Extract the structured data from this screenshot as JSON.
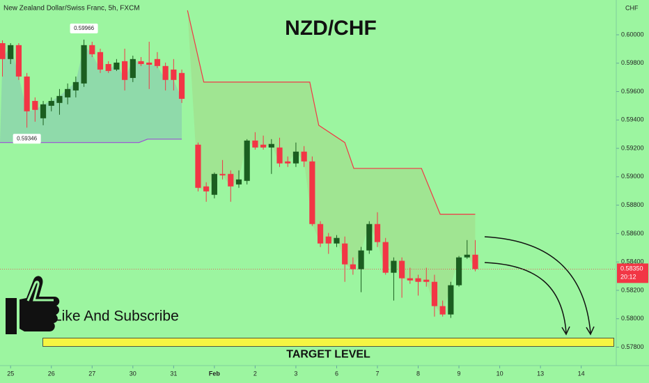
{
  "chart_data": {
    "type": "candlestick",
    "header": "New Zealand Dollar/Swiss Franc, 5h, FXCM",
    "title": "NZD/CHF",
    "y_axis_label": "CHF",
    "annotation": "Like And Subscribe",
    "target_label": "TARGET LEVEL",
    "up_color": "#1b5e20",
    "down_color": "#f23645",
    "x": [
      0,
      1,
      2,
      3,
      4,
      5,
      6,
      7,
      8,
      9,
      10,
      11,
      12,
      13,
      14,
      15,
      16,
      17,
      18,
      19,
      20,
      21,
      22,
      24,
      25,
      26,
      27,
      28,
      29,
      30,
      31,
      32,
      33,
      34,
      35,
      36,
      37,
      38,
      39,
      40,
      41,
      42,
      43,
      44,
      45,
      46,
      47,
      48,
      49,
      50,
      51,
      52,
      53,
      54,
      55,
      56,
      57,
      58
    ],
    "open": [
      0.59941,
      0.59829,
      0.59927,
      0.59706,
      0.59534,
      0.59412,
      0.595,
      0.5952,
      0.59559,
      0.59608,
      0.59657,
      0.59927,
      0.59878,
      0.59794,
      0.59755,
      0.59814,
      0.59696,
      0.59814,
      0.59804,
      0.59829,
      0.5978,
      0.59755,
      0.59731,
      0.59226,
      0.58932,
      0.58873,
      0.5902,
      0.5902,
      0.58946,
      0.58971,
      0.59255,
      0.59226,
      0.59206,
      0.59206,
      0.59108,
      0.59094,
      0.59177,
      0.59108,
      0.58667,
      0.58579,
      0.5853,
      0.5853,
      0.58383,
      0.58349,
      0.58481,
      0.58667,
      0.5854,
      0.58324,
      0.58408,
      0.58285,
      0.58285,
      0.58275,
      0.5826,
      0.58089,
      0.5803,
      0.58236,
      0.58432,
      0.58451
    ],
    "high": [
      0.59961,
      0.59941,
      0.59941,
      0.59731,
      0.59559,
      0.59534,
      0.59559,
      0.59618,
      0.59657,
      0.59706,
      0.59966,
      0.59951,
      0.59902,
      0.59814,
      0.59829,
      0.59902,
      0.59853,
      0.59843,
      0.59951,
      0.59878,
      0.59804,
      0.59829,
      0.59755,
      0.59241,
      0.58961,
      0.5903,
      0.59118,
      0.59045,
      0.59045,
      0.59265,
      0.59314,
      0.5929,
      0.59265,
      0.59275,
      0.59143,
      0.59241,
      0.59216,
      0.59143,
      0.58687,
      0.58604,
      0.58589,
      0.58579,
      0.58432,
      0.58506,
      0.58687,
      0.5875,
      0.58569,
      0.58432,
      0.58432,
      0.58359,
      0.5831,
      0.58359,
      0.5831,
      0.58128,
      0.5826,
      0.58442,
      0.58554,
      0.58554
    ],
    "low": [
      0.59706,
      0.59794,
      0.59682,
      0.59346,
      0.59388,
      0.59363,
      0.59461,
      0.59437,
      0.5951,
      0.59559,
      0.59633,
      0.59843,
      0.59731,
      0.59731,
      0.59745,
      0.59608,
      0.59667,
      0.5978,
      0.59618,
      0.59765,
      0.59608,
      0.59608,
      0.5952,
      0.58897,
      0.58824,
      0.58848,
      0.58981,
      0.58824,
      0.58922,
      0.58946,
      0.59191,
      0.59191,
      0.5902,
      0.59069,
      0.59069,
      0.59069,
      0.59069,
      0.58653,
      0.58505,
      0.58457,
      0.58505,
      0.5826,
      0.5831,
      0.58187,
      0.58457,
      0.58505,
      0.5831,
      0.58128,
      0.58148,
      0.58246,
      0.58163,
      0.58226,
      0.58015,
      0.58015,
      0.58006,
      0.58226,
      0.58422,
      0.58334
    ],
    "close": [
      0.59829,
      0.59927,
      0.59706,
      0.59461,
      0.59471,
      0.5951,
      0.59534,
      0.59569,
      0.59618,
      0.59667,
      0.59927,
      0.59863,
      0.59755,
      0.59745,
      0.59804,
      0.59682,
      0.59829,
      0.59794,
      0.59789,
      0.5978,
      0.59682,
      0.59682,
      0.59549,
      0.58922,
      0.58897,
      0.5902,
      0.5901,
      0.58932,
      0.58981,
      0.59255,
      0.59206,
      0.59206,
      0.59231,
      0.59094,
      0.59094,
      0.59177,
      0.59108,
      0.58667,
      0.5853,
      0.5853,
      0.58569,
      0.58383,
      0.58349,
      0.58481,
      0.58667,
      0.5854,
      0.58324,
      0.58408,
      0.58285,
      0.5827,
      0.5826,
      0.5826,
      0.58089,
      0.5803,
      0.58236,
      0.58432,
      0.58451,
      0.5835
    ],
    "high_label": "0.59966",
    "low_label": "0.59346",
    "last_price": {
      "value": 0.5835,
      "label": "0.58350"
    },
    "countdown": "20:12",
    "upper_line": {
      "color": "#f23645",
      "x": [
        22.7,
        24.7,
        37.7,
        38.8,
        42,
        43.1,
        51.4,
        53.7,
        58
      ],
      "values": [
        0.60172,
        0.59667,
        0.59667,
        0.59363,
        0.59241,
        0.59059,
        0.59059,
        0.58736,
        0.58736
      ]
    },
    "lower_line": {
      "color": "#9c4fd6",
      "x": [
        -0.3,
        16.75,
        17.8,
        22
      ],
      "values": [
        0.59241,
        0.59241,
        0.59265,
        0.59265
      ]
    },
    "target_zone": [
      0.57805,
      0.57864
    ],
    "target_x": [
      4.96,
      75
    ],
    "xlim": [
      -0.3,
      75.3
    ],
    "ylim": [
      0.5767,
      0.60245
    ],
    "xticks": [
      {
        "value": 1,
        "label": "25"
      },
      {
        "value": 6,
        "label": "26"
      },
      {
        "value": 11,
        "label": "27"
      },
      {
        "value": 16,
        "label": "30"
      },
      {
        "value": 21,
        "label": "31"
      },
      {
        "value": 26,
        "label": "Feb"
      },
      {
        "value": 31,
        "label": "2"
      },
      {
        "value": 36,
        "label": "3"
      },
      {
        "value": 41,
        "label": "6"
      },
      {
        "value": 46,
        "label": "7"
      },
      {
        "value": 51,
        "label": "8"
      },
      {
        "value": 56,
        "label": "9"
      },
      {
        "value": 61,
        "label": "10"
      },
      {
        "value": 66,
        "label": "13"
      },
      {
        "value": 71,
        "label": "14"
      }
    ],
    "yticks": [
      {
        "value": 0.578,
        "label": "0.57800"
      },
      {
        "value": 0.58,
        "label": "0.58000"
      },
      {
        "value": 0.582,
        "label": "0.58200"
      },
      {
        "value": 0.584,
        "label": "0.58400"
      },
      {
        "value": 0.586,
        "label": "0.58600"
      },
      {
        "value": 0.588,
        "label": "0.58800"
      },
      {
        "value": 0.59,
        "label": "0.59000"
      },
      {
        "value": 0.592,
        "label": "0.59200"
      },
      {
        "value": 0.594,
        "label": "0.59400"
      },
      {
        "value": 0.596,
        "label": "0.59600"
      },
      {
        "value": 0.598,
        "label": "0.59800"
      },
      {
        "value": 0.6,
        "label": "0.60000"
      }
    ]
  }
}
